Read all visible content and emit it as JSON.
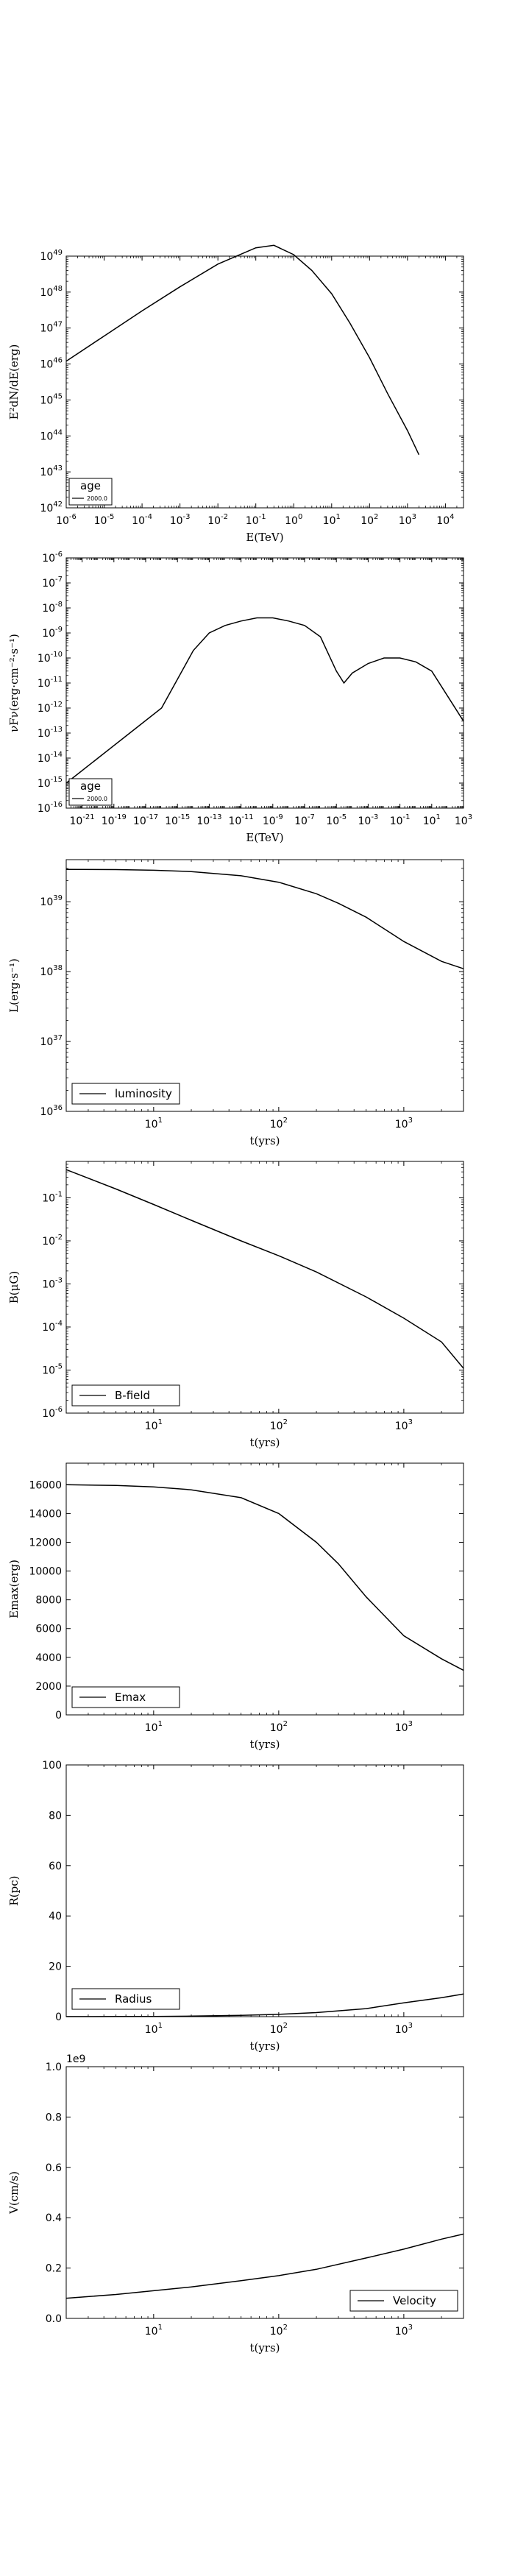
{
  "chart_data": [
    {
      "id": "sed",
      "type": "line",
      "xscale": "log",
      "yscale": "log",
      "xlim": [
        1e-06,
        30000.0
      ],
      "ylim": [
        1e+42,
        1e+49
      ],
      "xticks": [
        1e-06,
        1e-05,
        0.0001,
        0.001,
        0.01,
        0.1,
        1.0,
        10.0,
        100.0,
        1000.0,
        10000.0
      ],
      "yticks": [
        1e+42,
        1e+43,
        1e+44,
        1e+45,
        1e+46,
        1e+47,
        1e+48,
        1e+49
      ],
      "xlabel": "E(TeV)",
      "ylabel": "E²dN/dE(erg)",
      "legend": {
        "title": "age",
        "position": "lower-left",
        "entries": [
          "2000.0"
        ]
      },
      "series": [
        {
          "name": "2000.0",
          "x": [
            1e-06,
            1e-05,
            0.0001,
            0.001,
            0.01,
            0.1,
            0.3,
            1,
            3,
            10,
            30,
            100,
            300,
            1000,
            2000
          ],
          "y": [
            1.2e+46,
            6e+46,
            3e+47,
            1.4e+48,
            6e+48,
            1.7e+49,
            2e+49,
            1.1e+49,
            4e+48,
            9e+47,
            1.4e+47,
            1.5e+46,
            1.5e+45,
            1.4e+44,
            3e+43
          ]
        }
      ]
    },
    {
      "id": "nufnu",
      "type": "line",
      "xscale": "log",
      "yscale": "log",
      "xlim": [
        1e-22,
        1000.0
      ],
      "ylim": [
        1e-16,
        1e-06
      ],
      "xticks": [
        1e-21,
        1e-19,
        1e-17,
        1e-15,
        1e-13,
        1e-11,
        1e-09,
        1e-07,
        1e-05,
        0.001,
        0.1,
        10.0,
        1000.0
      ],
      "yticks": [
        1e-16,
        1e-15,
        1e-14,
        1e-13,
        1e-12,
        1e-11,
        1e-10,
        1e-09,
        1e-08,
        1e-07,
        1e-06
      ],
      "xlabel": "E(TeV)",
      "ylabel": "νFν(erg·cm⁻²·s⁻¹)",
      "legend": {
        "title": "age",
        "position": "lower-left",
        "entries": [
          "2000.0"
        ]
      },
      "series": [
        {
          "name": "2000.0",
          "x": [
            1e-22,
            1e-20,
            1e-18,
            1e-16,
            1e-14,
            1e-13,
            1e-12,
            1e-11,
            1e-10,
            1e-09,
            1e-08,
            1e-07,
            1e-06,
            1e-05,
            3e-05,
            0.0001,
            0.001,
            0.01,
            0.1,
            1,
            10,
            100,
            1000
          ],
          "y": [
            1e-15,
            1e-14,
            1e-13,
            1e-12,
            2e-10,
            1e-09,
            2e-09,
            3e-09,
            4e-09,
            4e-09,
            3e-09,
            2e-09,
            7e-10,
            3e-11,
            1e-11,
            2.5e-11,
            6e-11,
            1e-10,
            1e-10,
            7e-11,
            3e-11,
            3e-12,
            3e-13
          ]
        }
      ]
    },
    {
      "id": "luminosity",
      "type": "line",
      "xscale": "log",
      "yscale": "log",
      "xlim": [
        2,
        3000
      ],
      "ylim": [
        1e+36,
        4e+39
      ],
      "xticks": [
        10,
        100,
        1000
      ],
      "yticks": [
        1e+36,
        1e+37,
        1e+38,
        1e+39
      ],
      "xlabel": "t(yrs)",
      "ylabel": "L(erg·s⁻¹)",
      "legend": {
        "position": "lower-left",
        "entries": [
          "luminosity"
        ]
      },
      "series": [
        {
          "name": "luminosity",
          "x": [
            2,
            5,
            10,
            20,
            50,
            100,
            200,
            300,
            500,
            1000,
            2000,
            3000
          ],
          "y": [
            2.9e+39,
            2.88e+39,
            2.82e+39,
            2.7e+39,
            2.35e+39,
            1.9e+39,
            1.3e+39,
            9.5e+38,
            6e+38,
            2.7e+38,
            1.4e+38,
            1.1e+38
          ]
        }
      ]
    },
    {
      "id": "bfield",
      "type": "line",
      "xscale": "log",
      "yscale": "log",
      "xlim": [
        2,
        3000
      ],
      "ylim": [
        1e-06,
        0.7
      ],
      "xticks": [
        10,
        100,
        1000
      ],
      "yticks": [
        1e-06,
        1e-05,
        0.0001,
        0.001,
        0.01,
        0.1
      ],
      "xlabel": "t(yrs)",
      "ylabel": "B(μG)",
      "legend": {
        "position": "lower-left",
        "entries": [
          "B-field"
        ]
      },
      "series": [
        {
          "name": "B-field",
          "x": [
            2,
            5,
            10,
            20,
            50,
            100,
            200,
            500,
            1000,
            2000,
            3000
          ],
          "y": [
            0.45,
            0.16,
            0.07,
            0.03,
            0.01,
            0.0045,
            0.0019,
            0.0005,
            0.00016,
            4.5e-05,
            1.1e-05
          ]
        }
      ]
    },
    {
      "id": "emax",
      "type": "line",
      "xscale": "log",
      "yscale": "linear",
      "xlim": [
        2,
        3000
      ],
      "ylim": [
        0,
        17500
      ],
      "xticks": [
        10,
        100,
        1000
      ],
      "yticks": [
        0,
        2000,
        4000,
        6000,
        8000,
        10000,
        12000,
        14000,
        16000
      ],
      "xlabel": "t(yrs)",
      "ylabel": "Emax(erg)",
      "legend": {
        "position": "lower-left",
        "entries": [
          "Emax"
        ]
      },
      "series": [
        {
          "name": "Emax",
          "x": [
            2,
            5,
            10,
            20,
            50,
            100,
            200,
            300,
            500,
            1000,
            2000,
            3000
          ],
          "y": [
            16000,
            15950,
            15850,
            15650,
            15100,
            14000,
            12000,
            10500,
            8200,
            5500,
            3900,
            3100
          ]
        }
      ]
    },
    {
      "id": "radius",
      "type": "line",
      "xscale": "log",
      "yscale": "linear",
      "xlim": [
        2,
        3000
      ],
      "ylim": [
        0,
        100
      ],
      "xticks": [
        10,
        100,
        1000
      ],
      "yticks": [
        0,
        20,
        40,
        60,
        80,
        100
      ],
      "xlabel": "t(yrs)",
      "ylabel": "R(pc)",
      "legend": {
        "position": "lower-left",
        "entries": [
          "Radius"
        ]
      },
      "series": [
        {
          "name": "Radius",
          "x": [
            2,
            5,
            10,
            20,
            50,
            100,
            200,
            500,
            1000,
            2000,
            3000
          ],
          "y": [
            0.02,
            0.05,
            0.1,
            0.2,
            0.5,
            0.9,
            1.6,
            3.2,
            5.5,
            7.5,
            9.0
          ]
        }
      ]
    },
    {
      "id": "velocity",
      "type": "line",
      "xscale": "log",
      "yscale": "linear",
      "xlim": [
        2,
        3000
      ],
      "ylim": [
        0,
        1000000000.0
      ],
      "xticks": [
        10,
        100,
        1000
      ],
      "yticks": [
        0,
        200000000.0,
        400000000.0,
        600000000.0,
        800000000.0,
        1000000000.0
      ],
      "ytick_labels": [
        "0.0",
        "0.2",
        "0.4",
        "0.6",
        "0.8",
        "1.0"
      ],
      "offset_text": "1e9",
      "xlabel": "t(yrs)",
      "ylabel": "V(cm/s)",
      "legend": {
        "position": "lower-right",
        "entries": [
          "Velocity"
        ]
      },
      "series": [
        {
          "name": "Velocity",
          "x": [
            2,
            5,
            10,
            20,
            50,
            100,
            200,
            500,
            1000,
            2000,
            3000
          ],
          "y": [
            80000000.0,
            95000000.0,
            110000000.0,
            125000000.0,
            150000000.0,
            170000000.0,
            195000000.0,
            240000000.0,
            275000000.0,
            315000000.0,
            335000000.0
          ]
        }
      ]
    }
  ]
}
